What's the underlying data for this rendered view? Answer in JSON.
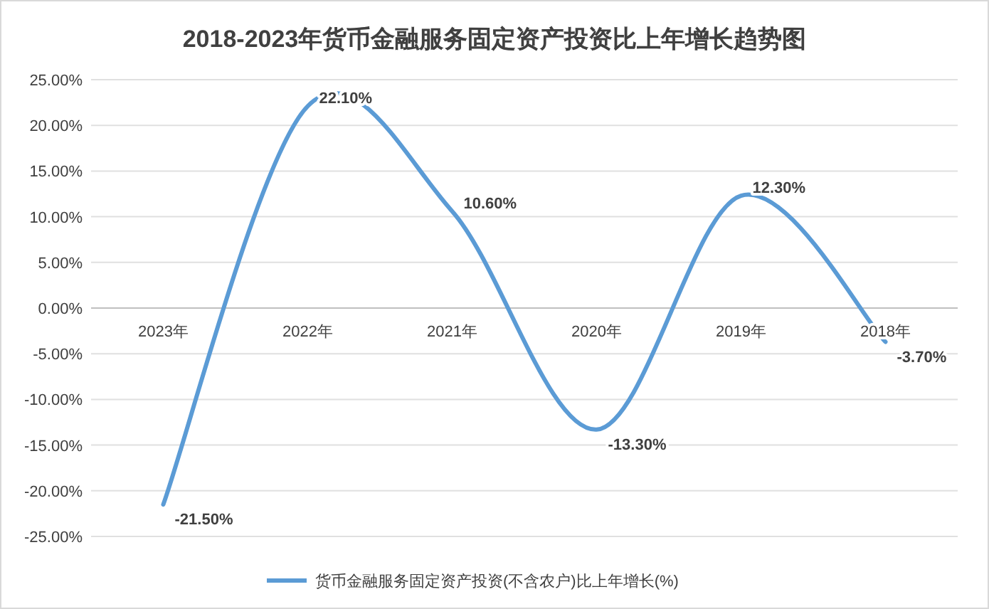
{
  "chart_data": {
    "type": "line",
    "title": "2018-2023年货币金融服务固定资产投资比上年增长趋势图",
    "categories": [
      "2023年",
      "2022年",
      "2021年",
      "2020年",
      "2019年",
      "2018年"
    ],
    "series": [
      {
        "name": "货币金融服务固定资产投资(不含农户)比上年增长(%)",
        "color": "#5b9bd5",
        "values": [
          -21.5,
          22.1,
          10.6,
          -13.3,
          12.3,
          -3.7
        ],
        "value_labels": [
          "-21.50%",
          "22.10%",
          "10.60%",
          "-13.30%",
          "12.30%",
          "-3.70%"
        ]
      }
    ],
    "ylim": [
      -25,
      25
    ],
    "yticks": [
      {
        "value": -25,
        "label": "-25.00%"
      },
      {
        "value": -20,
        "label": "-20.00%"
      },
      {
        "value": -15,
        "label": "-15.00%"
      },
      {
        "value": -10,
        "label": "-10.00%"
      },
      {
        "value": -5,
        "label": "-5.00%"
      },
      {
        "value": 0,
        "label": "0.00%"
      },
      {
        "value": 5,
        "label": "5.00%"
      },
      {
        "value": 10,
        "label": "10.00%"
      },
      {
        "value": 15,
        "label": "15.00%"
      },
      {
        "value": 20,
        "label": "20.00%"
      },
      {
        "value": 25,
        "label": "25.00%"
      }
    ],
    "grid": "y",
    "legend": "bottom"
  }
}
